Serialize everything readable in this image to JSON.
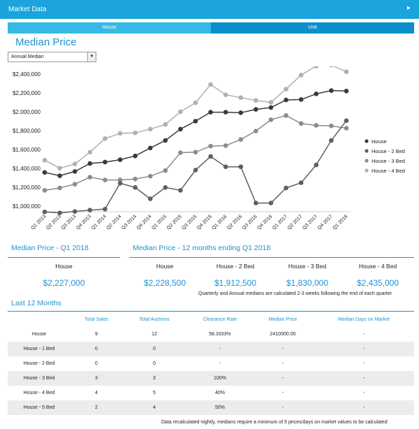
{
  "topbar": {
    "title": "Market Data",
    "chevron": "chevron-right-icon"
  },
  "tabs": [
    {
      "label": "House"
    },
    {
      "label": "Unit"
    }
  ],
  "median_price": {
    "title": "Median Price",
    "select_value": "Annual Median"
  },
  "chart_data": {
    "type": "line",
    "title": "Median Price",
    "categories": [
      "Q1 2013",
      "Q2 2013",
      "Q3 2013",
      "Q4 2013",
      "Q1 2014",
      "Q2 2014",
      "Q3 2014",
      "Q4 2014",
      "Q1 2015",
      "Q2 2015",
      "Q3 2015",
      "Q4 2015",
      "Q1 2016",
      "Q2 2016",
      "Q3 2016",
      "Q4 2016",
      "Q1 2017",
      "Q2 2017",
      "Q3 2017",
      "Q4 2017",
      "Q1 2018"
    ],
    "series": [
      {
        "name": "House",
        "color": "#3a3a3a",
        "values": [
          1360000,
          1325000,
          1370000,
          1455000,
          1470000,
          1495000,
          1535000,
          1620000,
          1700000,
          1820000,
          1905000,
          2000000,
          2000000,
          1995000,
          2030000,
          2050000,
          2130000,
          2135000,
          2195000,
          2230000,
          2225000
        ]
      },
      {
        "name": "House - 2 Bed",
        "color": "#5f5f5f",
        "values": [
          940000,
          930000,
          945000,
          960000,
          970000,
          1245000,
          1200000,
          1080000,
          1200000,
          1170000,
          1385000,
          1530000,
          1420000,
          1420000,
          1035000,
          1035000,
          1195000,
          1250000,
          1440000,
          1700000,
          1910000
        ]
      },
      {
        "name": "House - 3 Bed",
        "color": "#8c8c8c",
        "values": [
          1170000,
          1195000,
          1235000,
          1310000,
          1280000,
          1280000,
          1290000,
          1320000,
          1380000,
          1570000,
          1575000,
          1640000,
          1645000,
          1710000,
          1800000,
          1920000,
          1965000,
          1880000,
          1860000,
          1855000,
          1830000
        ]
      },
      {
        "name": "House - 4 Bed",
        "color": "#b0b0b0",
        "values": [
          1490000,
          1405000,
          1450000,
          1575000,
          1720000,
          1775000,
          1780000,
          1820000,
          1870000,
          2005000,
          2100000,
          2295000,
          2185000,
          2155000,
          2125000,
          2105000,
          2245000,
          2395000,
          2490000,
          2500000,
          2430000
        ]
      }
    ],
    "yticks": [
      "$1,000,000",
      "$1,200,000",
      "$1,400,000",
      "$1,600,000",
      "$1,800,000",
      "$2,000,000",
      "$2,200,000",
      "$2,400,000"
    ],
    "ylim": [
      950000,
      2450000
    ],
    "legend_position": "right"
  },
  "q1": {
    "title": "Median Price - Q1 2018",
    "label": "House",
    "value": "$2,227,000"
  },
  "m12": {
    "title": "Median Price - 12 months ending Q1 2018",
    "labels": [
      "House",
      "House - 2 Bed",
      "House - 3 Bed",
      "House - 4 Bed"
    ],
    "values": [
      "$2,228,500",
      "$1,912,500",
      "$1,830,000",
      "$2,435,000"
    ],
    "note": "Quarterly and Annual medians are calculated 2-3 weeks following the end of each quarter"
  },
  "last12": {
    "title": "Last 12 Months",
    "headers": [
      "",
      "Total Sales",
      "Total Auctions",
      "Clearance Rate",
      "Median Price",
      "Median Days on Market"
    ],
    "rows": [
      [
        "House",
        "9",
        "12",
        "58.3333%",
        "2410000.00",
        "-"
      ],
      [
        "House - 1 Bed",
        "0",
        "0",
        "-",
        "-",
        "-"
      ],
      [
        "House - 2 Bed",
        "0",
        "0",
        "-",
        "-",
        "-"
      ],
      [
        "House - 3 Bed",
        "3",
        "3",
        "100%",
        "-",
        "-"
      ],
      [
        "House - 4 Bed",
        "4",
        "5",
        "40%",
        "-",
        "-"
      ],
      [
        "House - 5 Bed",
        "2",
        "4",
        "50%",
        "-",
        "-"
      ]
    ],
    "footnote": "Data recalculated nightly, medians require a minimum of 5 prices/days on market values to be calculated"
  }
}
